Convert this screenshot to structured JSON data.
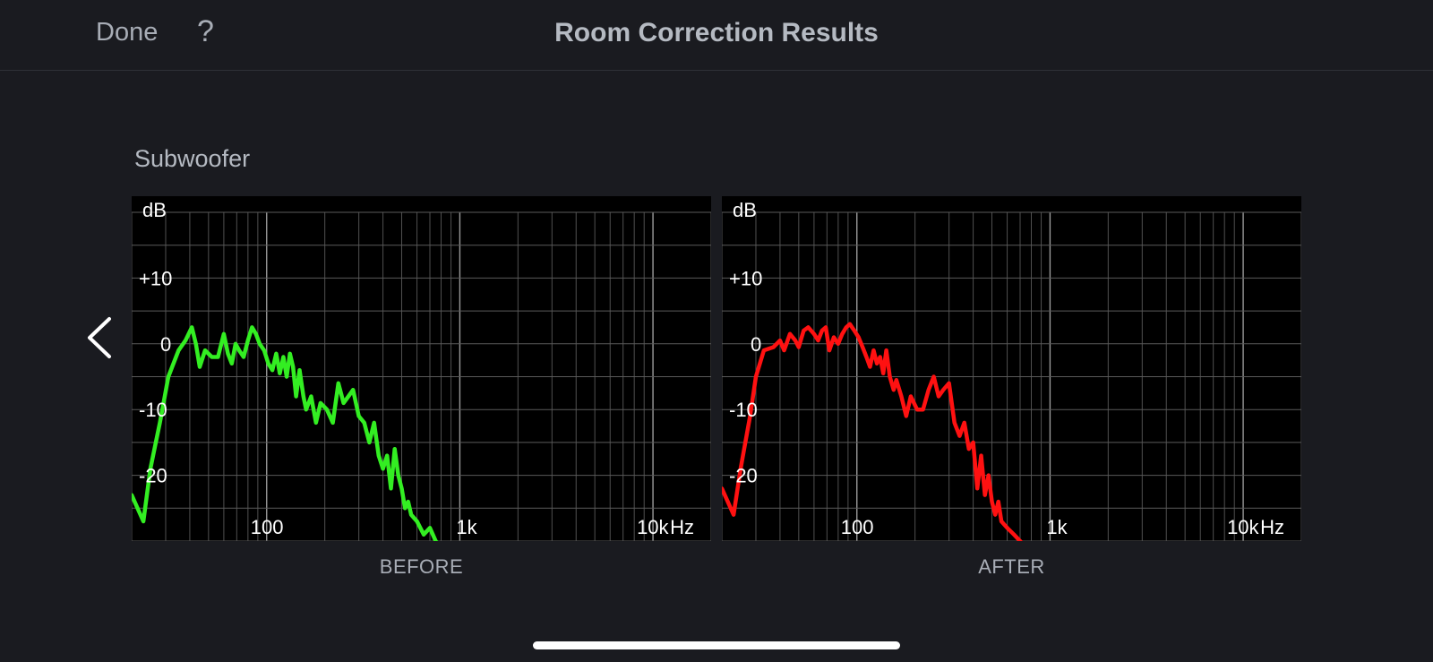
{
  "nav": {
    "done_label": "Done",
    "help_label": "?",
    "title": "Room Correction Results"
  },
  "section": {
    "label": "Subwoofer"
  },
  "colors": {
    "background": "#1a1b20",
    "before_curve": "#33ee22",
    "after_curve": "#ff1111",
    "grid": "#5a5a5a"
  },
  "icons": {
    "back": "chevron-left-icon"
  },
  "chart_data": [
    {
      "type": "line",
      "caption": "BEFORE",
      "y_unit_label": "dB",
      "x_unit_label": "Hz",
      "x_scale": "log",
      "xlim": [
        20,
        20000
      ],
      "ylim": [
        -30,
        20
      ],
      "x_ticks": [
        {
          "value": 100,
          "label": "100"
        },
        {
          "value": 1000,
          "label": "1k"
        },
        {
          "value": 10000,
          "label": "10k"
        }
      ],
      "y_ticks": [
        {
          "value": 10,
          "label": "+10"
        },
        {
          "value": 0,
          "label": "0"
        },
        {
          "value": -10,
          "label": "-10"
        },
        {
          "value": -20,
          "label": "-20"
        }
      ],
      "grid": true,
      "series": [
        {
          "color": "#33ee22",
          "x": [
            20,
            23,
            25,
            28,
            31,
            35,
            38,
            41,
            43,
            45,
            48,
            52,
            56,
            60,
            63,
            66,
            69,
            72,
            76,
            80,
            84,
            88,
            92,
            97,
            102,
            107,
            112,
            117,
            122,
            127,
            132,
            137,
            142,
            148,
            155,
            160,
            170,
            180,
            190,
            205,
            220,
            235,
            250,
            265,
            280,
            300,
            320,
            340,
            360,
            380,
            400,
            420,
            440,
            460,
            480,
            500,
            520,
            540,
            560,
            600,
            650,
            700,
            750,
            800
          ],
          "y": [
            -23,
            -27,
            -19,
            -12,
            -5,
            -1,
            0.5,
            2.5,
            0,
            -3.5,
            -1,
            -2,
            -2,
            1.5,
            -1.5,
            -3,
            0,
            -1,
            -2,
            0.5,
            2.5,
            1.5,
            0,
            -1,
            -3,
            -4,
            -1.5,
            -4.5,
            -2,
            -5,
            -1.5,
            -3.5,
            -8,
            -4,
            -8,
            -10,
            -8,
            -12,
            -9,
            -10,
            -12,
            -6,
            -9,
            -8,
            -7,
            -11,
            -12,
            -15,
            -12,
            -17,
            -19,
            -17,
            -22,
            -16,
            -20,
            -22,
            -25,
            -24,
            -26,
            -27,
            -29,
            -28,
            -30,
            -31
          ]
        }
      ]
    },
    {
      "type": "line",
      "caption": "AFTER",
      "y_unit_label": "dB",
      "x_unit_label": "Hz",
      "x_scale": "log",
      "xlim": [
        20,
        20000
      ],
      "ylim": [
        -30,
        20
      ],
      "x_ticks": [
        {
          "value": 100,
          "label": "100"
        },
        {
          "value": 1000,
          "label": "1k"
        },
        {
          "value": 10000,
          "label": "10k"
        }
      ],
      "y_ticks": [
        {
          "value": 10,
          "label": "+10"
        },
        {
          "value": 0,
          "label": "0"
        },
        {
          "value": -10,
          "label": "-10"
        },
        {
          "value": -20,
          "label": "-20"
        }
      ],
      "grid": true,
      "series": [
        {
          "color": "#ff1111",
          "x": [
            20,
            23,
            25,
            28,
            30,
            33,
            37,
            40,
            42,
            45,
            48,
            50,
            53,
            56,
            60,
            63,
            66,
            69,
            72,
            76,
            80,
            84,
            88,
            92,
            97,
            102,
            107,
            112,
            117,
            122,
            127,
            132,
            137,
            142,
            148,
            155,
            160,
            170,
            180,
            190,
            205,
            220,
            235,
            250,
            265,
            280,
            300,
            320,
            340,
            360,
            380,
            400,
            420,
            440,
            460,
            480,
            500,
            520,
            540,
            560,
            600,
            650,
            700,
            750
          ],
          "y": [
            -22,
            -26,
            -19,
            -11,
            -5,
            -1,
            -0.5,
            0.5,
            -1,
            1.5,
            0.5,
            -0.5,
            2,
            2.5,
            1.5,
            0.5,
            2,
            2.5,
            -1,
            1,
            0,
            1.5,
            2.5,
            3,
            2,
            1,
            -0.5,
            -2,
            -3.5,
            -1,
            -3,
            -2,
            -4.5,
            -1,
            -5,
            -7,
            -5.5,
            -8,
            -11,
            -8,
            -10,
            -10,
            -7,
            -5,
            -8,
            -7,
            -6,
            -12,
            -14,
            -12,
            -16,
            -15,
            -22,
            -17,
            -23,
            -20,
            -24,
            -26,
            -24,
            -27,
            -28,
            -29,
            -30,
            -31
          ]
        }
      ]
    }
  ]
}
